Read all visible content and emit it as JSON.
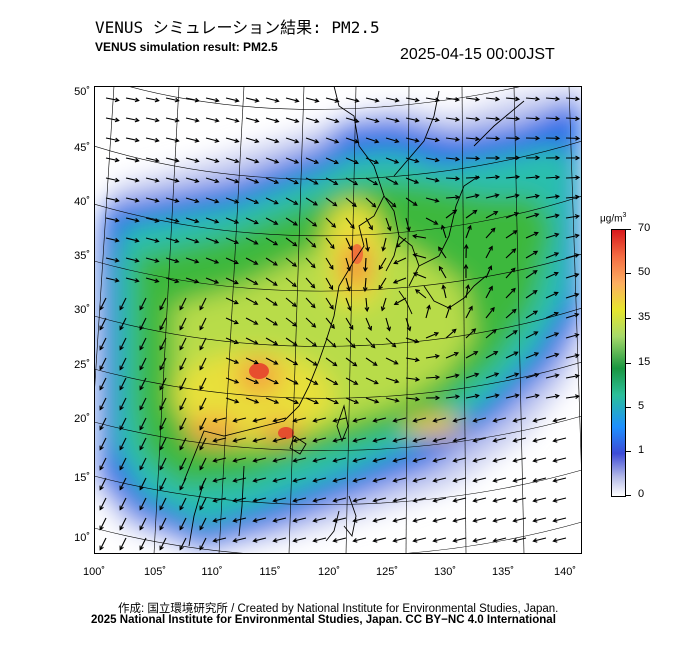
{
  "title_jp": "VENUS シミュレーション結果: PM2.5",
  "title_en": "VENUS simulation result: PM2.5",
  "datetime": "2025-04-15 00:00JST",
  "colorbar": {
    "unit": "μg/m",
    "unit_sup": "3",
    "labels": [
      "70",
      "50",
      "35",
      "15",
      "5",
      "1",
      "0"
    ],
    "colors": [
      "#d7191c",
      "#f46d43",
      "#fdae61",
      "#e6e62e",
      "#a6d96a",
      "#1a9641",
      "#1e90ff",
      "#3d4bd6",
      "#ffffff"
    ]
  },
  "lat_labels": [
    "50˚",
    "45˚",
    "40˚",
    "35˚",
    "30˚",
    "25˚",
    "20˚",
    "15˚",
    "10˚"
  ],
  "lon_labels": [
    "100˚",
    "105˚",
    "110˚",
    "115˚",
    "120˚",
    "125˚",
    "130˚",
    "135˚",
    "140˚"
  ],
  "credit_line1": "作成: 国立環境研究所 / Created by National Institute for Environmental Studies, Japan.",
  "credit_line2": "2025 National Institute for Environmental Studies, Japan. CC BY−NC 4.0 International"
}
